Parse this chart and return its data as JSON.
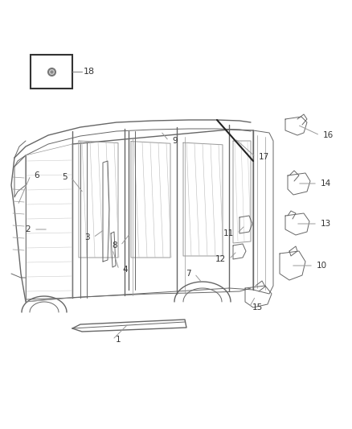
{
  "bg_color": "#ffffff",
  "line_color": "#666666",
  "dark_color": "#222222",
  "gray_color": "#999999",
  "label_color": "#333333",
  "figsize": [
    4.38,
    5.33
  ],
  "dpi": 100
}
